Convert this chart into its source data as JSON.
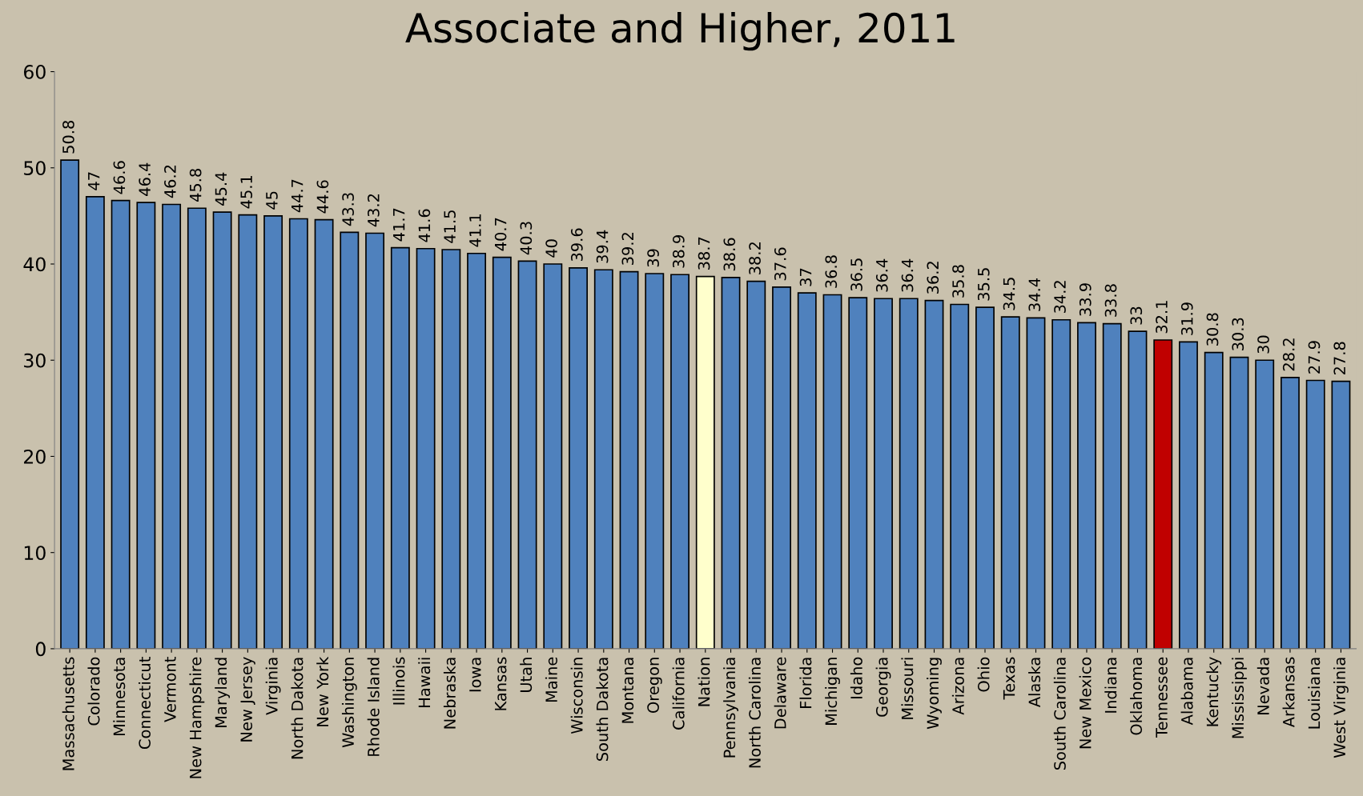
{
  "chart_data": {
    "type": "bar",
    "title": "Associate and Higher, 2011",
    "categories": [
      "Massachusetts",
      "Colorado",
      "Minnesota",
      "Connecticut",
      "Vermont",
      "New Hampshire",
      "Maryland",
      "New Jersey",
      "Virginia",
      "North Dakota",
      "New York",
      "Washington",
      "Rhode Island",
      "Illinois",
      "Hawaii",
      "Nebraska",
      "Iowa",
      "Kansas",
      "Utah",
      "Maine",
      "Wisconsin",
      "South Dakota",
      "Montana",
      "Oregon",
      "California",
      "Nation",
      "Pennsylvania",
      "North Carolina",
      "Delaware",
      "Florida",
      "Michigan",
      "Idaho",
      "Georgia",
      "Missouri",
      "Wyoming",
      "Arizona",
      "Ohio",
      "Texas",
      "Alaska",
      "South Carolina",
      "New Mexico",
      "Indiana",
      "Oklahoma",
      "Tennessee",
      "Alabama",
      "Kentucky",
      "Mississippi",
      "Nevada",
      "Arkansas",
      "Louisiana",
      "West Virginia"
    ],
    "values": [
      50.8,
      47,
      46.6,
      46.4,
      46.2,
      45.8,
      45.4,
      45.1,
      45,
      44.7,
      44.6,
      43.3,
      43.2,
      41.7,
      41.6,
      41.5,
      41.1,
      40.7,
      40.3,
      40,
      39.6,
      39.4,
      39.2,
      39,
      38.9,
      38.7,
      38.6,
      38.2,
      37.6,
      37,
      36.8,
      36.5,
      36.4,
      36.4,
      36.2,
      35.8,
      35.5,
      34.5,
      34.4,
      34.2,
      33.9,
      33.8,
      33,
      32.1,
      31.9,
      30.8,
      30.3,
      30,
      28.2,
      27.9,
      27.8
    ],
    "colors": [
      "#4f81bd",
      "#4f81bd",
      "#4f81bd",
      "#4f81bd",
      "#4f81bd",
      "#4f81bd",
      "#4f81bd",
      "#4f81bd",
      "#4f81bd",
      "#4f81bd",
      "#4f81bd",
      "#4f81bd",
      "#4f81bd",
      "#4f81bd",
      "#4f81bd",
      "#4f81bd",
      "#4f81bd",
      "#4f81bd",
      "#4f81bd",
      "#4f81bd",
      "#4f81bd",
      "#4f81bd",
      "#4f81bd",
      "#4f81bd",
      "#4f81bd",
      "#ffffcc",
      "#4f81bd",
      "#4f81bd",
      "#4f81bd",
      "#4f81bd",
      "#4f81bd",
      "#4f81bd",
      "#4f81bd",
      "#4f81bd",
      "#4f81bd",
      "#4f81bd",
      "#4f81bd",
      "#4f81bd",
      "#4f81bd",
      "#4f81bd",
      "#4f81bd",
      "#4f81bd",
      "#4f81bd",
      "#c00000",
      "#4f81bd",
      "#4f81bd",
      "#4f81bd",
      "#4f81bd",
      "#4f81bd",
      "#4f81bd",
      "#4f81bd"
    ],
    "ylim": [
      0,
      60
    ],
    "yticks": [
      0,
      10,
      20,
      30,
      40,
      50,
      60
    ],
    "data_labels": true,
    "grid": false
  }
}
